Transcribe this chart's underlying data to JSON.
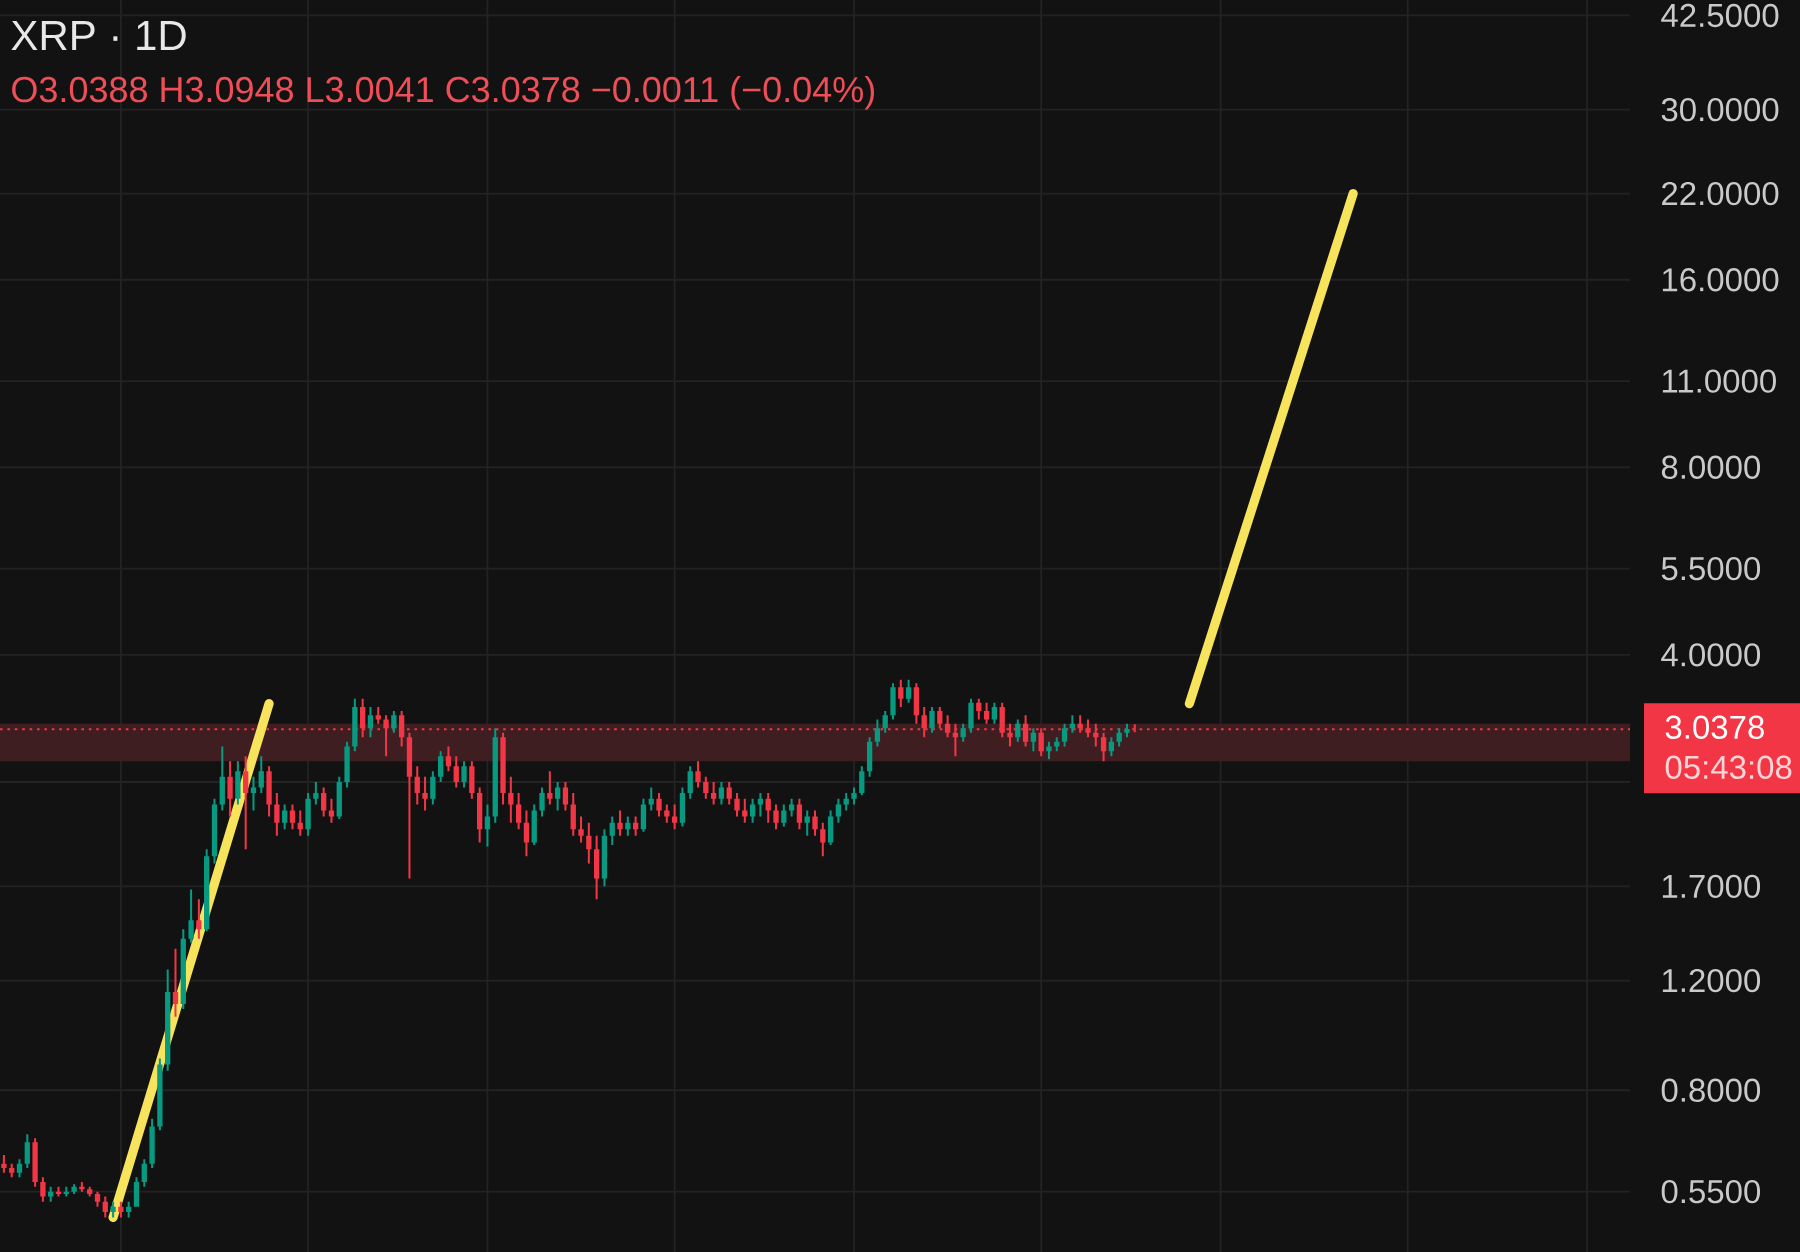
{
  "chart_data": {
    "type": "candlestick",
    "title": "XRP · 1D",
    "subtitle": "O3.0388 H3.0948 L3.0041 C3.0378 −0.0011 (−0.04%)",
    "annotations": [
      "05:43:08"
    ],
    "categories": [
      null,
      null,
      null,
      null,
      null,
      null,
      null,
      null,
      null,
      null,
      null,
      null,
      null,
      null,
      null,
      null,
      null,
      null,
      null,
      null,
      null,
      null,
      null,
      null,
      null,
      null,
      null,
      null,
      null,
      null,
      null,
      null,
      null,
      null,
      null,
      null,
      null,
      null,
      null,
      null,
      null,
      null,
      null,
      null,
      null,
      null,
      null,
      null,
      null,
      null,
      null,
      null,
      null,
      null,
      null,
      null,
      null,
      null,
      null,
      null,
      null,
      null,
      null,
      null,
      null,
      null,
      null,
      null,
      null,
      null,
      null,
      null,
      null,
      null,
      null,
      null,
      null,
      null,
      null,
      null,
      null,
      null,
      null,
      null,
      null,
      null,
      null,
      null,
      null,
      null,
      null,
      null,
      null,
      null,
      null,
      null,
      null,
      null,
      null,
      null,
      null,
      null,
      null,
      null,
      null,
      null,
      null,
      null,
      null,
      null,
      null,
      null,
      null,
      null,
      null,
      null,
      null,
      null,
      null,
      null,
      null,
      null,
      null,
      null,
      null,
      null,
      null,
      null,
      null,
      null,
      null,
      null,
      null,
      null,
      null,
      null,
      null,
      null,
      null,
      null,
      null,
      null,
      null,
      null,
      null,
      null,
      null,
      null,
      null,
      null,
      null,
      null,
      null,
      null,
      null,
      null,
      null,
      null,
      null,
      null,
      null,
      null,
      null,
      null,
      null,
      null,
      null,
      null,
      null,
      null,
      null,
      null,
      null,
      null,
      null,
      null,
      null,
      null,
      null,
      null,
      null,
      null,
      null,
      null,
      null,
      null,
      null,
      null,
      null,
      null,
      null,
      null,
      null,
      null,
      null,
      null,
      null,
      null,
      null,
      null,
      null,
      null,
      null,
      null,
      null,
      null,
      null,
      null,
      null
    ],
    "ohlc": [
      [
        0.61,
        0.63,
        0.59,
        0.6
      ],
      [
        0.6,
        0.61,
        0.58,
        0.59
      ],
      [
        0.59,
        0.62,
        0.58,
        0.61
      ],
      [
        0.61,
        0.68,
        0.6,
        0.66
      ],
      [
        0.66,
        0.67,
        0.56,
        0.57
      ],
      [
        0.57,
        0.58,
        0.53,
        0.54
      ],
      [
        0.54,
        0.56,
        0.53,
        0.55
      ],
      [
        0.55,
        0.56,
        0.54,
        0.545
      ],
      [
        0.545,
        0.56,
        0.54,
        0.55
      ],
      [
        0.55,
        0.565,
        0.545,
        0.56
      ],
      [
        0.56,
        0.57,
        0.55,
        0.555
      ],
      [
        0.555,
        0.56,
        0.54,
        0.545
      ],
      [
        0.545,
        0.55,
        0.52,
        0.53
      ],
      [
        0.53,
        0.54,
        0.5,
        0.51
      ],
      [
        0.51,
        0.53,
        0.5,
        0.52
      ],
      [
        0.52,
        0.53,
        0.5,
        0.51
      ],
      [
        0.51,
        0.53,
        0.5,
        0.52
      ],
      [
        0.52,
        0.58,
        0.52,
        0.57
      ],
      [
        0.57,
        0.62,
        0.56,
        0.61
      ],
      [
        0.61,
        0.72,
        0.6,
        0.7
      ],
      [
        0.7,
        0.9,
        0.69,
        0.88
      ],
      [
        0.88,
        1.25,
        0.86,
        1.15
      ],
      [
        1.15,
        1.35,
        1.05,
        1.1
      ],
      [
        1.1,
        1.45,
        1.08,
        1.4
      ],
      [
        1.4,
        1.68,
        1.38,
        1.5
      ],
      [
        1.5,
        1.62,
        1.4,
        1.45
      ],
      [
        1.45,
        1.95,
        1.44,
        1.9
      ],
      [
        1.9,
        2.35,
        1.85,
        2.3
      ],
      [
        2.3,
        2.85,
        2.25,
        2.55
      ],
      [
        2.55,
        2.7,
        2.2,
        2.35
      ],
      [
        2.35,
        2.7,
        2.3,
        2.6
      ],
      [
        2.6,
        2.75,
        1.95,
        2.4
      ],
      [
        2.4,
        2.55,
        2.25,
        2.45
      ],
      [
        2.45,
        2.75,
        2.4,
        2.6
      ],
      [
        2.6,
        2.65,
        2.2,
        2.3
      ],
      [
        2.3,
        2.4,
        2.05,
        2.15
      ],
      [
        2.15,
        2.3,
        2.1,
        2.25
      ],
      [
        2.25,
        2.3,
        2.1,
        2.15
      ],
      [
        2.15,
        2.25,
        2.05,
        2.1
      ],
      [
        2.1,
        2.4,
        2.05,
        2.35
      ],
      [
        2.35,
        2.5,
        2.3,
        2.4
      ],
      [
        2.4,
        2.45,
        2.2,
        2.25
      ],
      [
        2.25,
        2.35,
        2.15,
        2.2
      ],
      [
        2.2,
        2.55,
        2.18,
        2.5
      ],
      [
        2.5,
        2.9,
        2.45,
        2.85
      ],
      [
        2.85,
        3.4,
        2.8,
        3.3
      ],
      [
        3.3,
        3.4,
        2.95,
        3.05
      ],
      [
        3.05,
        3.3,
        2.95,
        3.2
      ],
      [
        3.2,
        3.3,
        3.1,
        3.15
      ],
      [
        3.15,
        3.2,
        2.75,
        3.05
      ],
      [
        3.05,
        3.25,
        3.0,
        3.2
      ],
      [
        3.2,
        3.25,
        2.85,
        2.95
      ],
      [
        2.95,
        3.0,
        1.75,
        2.55
      ],
      [
        2.55,
        2.65,
        2.3,
        2.4
      ],
      [
        2.4,
        2.55,
        2.25,
        2.35
      ],
      [
        2.35,
        2.6,
        2.3,
        2.55
      ],
      [
        2.55,
        2.8,
        2.5,
        2.75
      ],
      [
        2.75,
        2.85,
        2.6,
        2.65
      ],
      [
        2.65,
        2.75,
        2.45,
        2.5
      ],
      [
        2.5,
        2.7,
        2.45,
        2.65
      ],
      [
        2.65,
        2.7,
        2.35,
        2.4
      ],
      [
        2.4,
        2.45,
        2.0,
        2.1
      ],
      [
        2.1,
        2.3,
        1.97,
        2.2
      ],
      [
        2.2,
        3.05,
        2.15,
        2.95
      ],
      [
        2.95,
        3.0,
        2.3,
        2.4
      ],
      [
        2.4,
        2.55,
        2.15,
        2.3
      ],
      [
        2.3,
        2.4,
        2.1,
        2.15
      ],
      [
        2.15,
        2.25,
        1.9,
        2.0
      ],
      [
        2.0,
        2.3,
        1.98,
        2.25
      ],
      [
        2.25,
        2.45,
        2.2,
        2.4
      ],
      [
        2.4,
        2.6,
        2.3,
        2.35
      ],
      [
        2.35,
        2.5,
        2.25,
        2.45
      ],
      [
        2.45,
        2.5,
        2.25,
        2.3
      ],
      [
        2.3,
        2.4,
        2.05,
        2.1
      ],
      [
        2.1,
        2.2,
        2.0,
        2.05
      ],
      [
        2.05,
        2.15,
        1.85,
        1.95
      ],
      [
        1.95,
        2.05,
        1.62,
        1.75
      ],
      [
        1.75,
        2.1,
        1.7,
        2.05
      ],
      [
        2.05,
        2.2,
        1.98,
        2.15
      ],
      [
        2.15,
        2.25,
        2.05,
        2.1
      ],
      [
        2.1,
        2.2,
        2.05,
        2.15
      ],
      [
        2.15,
        2.2,
        2.05,
        2.1
      ],
      [
        2.1,
        2.35,
        2.08,
        2.3
      ],
      [
        2.3,
        2.45,
        2.25,
        2.35
      ],
      [
        2.35,
        2.4,
        2.2,
        2.25
      ],
      [
        2.25,
        2.3,
        2.15,
        2.2
      ],
      [
        2.2,
        2.3,
        2.1,
        2.15
      ],
      [
        2.15,
        2.45,
        2.12,
        2.4
      ],
      [
        2.4,
        2.65,
        2.35,
        2.6
      ],
      [
        2.6,
        2.7,
        2.45,
        2.5
      ],
      [
        2.5,
        2.55,
        2.35,
        2.4
      ],
      [
        2.4,
        2.5,
        2.3,
        2.35
      ],
      [
        2.35,
        2.5,
        2.3,
        2.45
      ],
      [
        2.45,
        2.5,
        2.3,
        2.35
      ],
      [
        2.35,
        2.4,
        2.2,
        2.25
      ],
      [
        2.25,
        2.35,
        2.15,
        2.2
      ],
      [
        2.2,
        2.35,
        2.15,
        2.3
      ],
      [
        2.3,
        2.4,
        2.2,
        2.35
      ],
      [
        2.35,
        2.4,
        2.15,
        2.25
      ],
      [
        2.25,
        2.3,
        2.1,
        2.15
      ],
      [
        2.15,
        2.3,
        2.12,
        2.25
      ],
      [
        2.25,
        2.35,
        2.2,
        2.3
      ],
      [
        2.3,
        2.35,
        2.1,
        2.15
      ],
      [
        2.15,
        2.25,
        2.05,
        2.2
      ],
      [
        2.2,
        2.25,
        2.05,
        2.1
      ],
      [
        2.1,
        2.15,
        1.9,
        2.0
      ],
      [
        2.0,
        2.25,
        1.98,
        2.2
      ],
      [
        2.2,
        2.35,
        2.15,
        2.3
      ],
      [
        2.3,
        2.4,
        2.25,
        2.35
      ],
      [
        2.35,
        2.45,
        2.3,
        2.4
      ],
      [
        2.4,
        2.65,
        2.38,
        2.6
      ],
      [
        2.6,
        2.95,
        2.55,
        2.9
      ],
      [
        2.9,
        3.15,
        2.85,
        3.05
      ],
      [
        3.05,
        3.25,
        3.0,
        3.2
      ],
      [
        3.2,
        3.6,
        3.15,
        3.55
      ],
      [
        3.55,
        3.65,
        3.3,
        3.4
      ],
      [
        3.4,
        3.65,
        3.35,
        3.55
      ],
      [
        3.55,
        3.6,
        3.1,
        3.2
      ],
      [
        3.2,
        3.3,
        2.95,
        3.05
      ],
      [
        3.05,
        3.3,
        3.0,
        3.25
      ],
      [
        3.25,
        3.3,
        3.05,
        3.1
      ],
      [
        3.1,
        3.2,
        2.95,
        3.0
      ],
      [
        3.0,
        3.1,
        2.75,
        2.95
      ],
      [
        2.95,
        3.1,
        2.9,
        3.05
      ],
      [
        3.05,
        3.4,
        3.0,
        3.35
      ],
      [
        3.35,
        3.4,
        3.15,
        3.25
      ],
      [
        3.25,
        3.35,
        3.1,
        3.15
      ],
      [
        3.15,
        3.35,
        3.1,
        3.3
      ],
      [
        3.3,
        3.35,
        2.95,
        3.0
      ],
      [
        3.0,
        3.1,
        2.85,
        2.95
      ],
      [
        2.95,
        3.15,
        2.9,
        3.1
      ],
      [
        3.1,
        3.2,
        2.85,
        2.9
      ],
      [
        2.9,
        3.05,
        2.8,
        3.0
      ],
      [
        3.0,
        3.05,
        2.75,
        2.8
      ],
      [
        2.8,
        2.9,
        2.72,
        2.85
      ],
      [
        2.85,
        2.95,
        2.8,
        2.9
      ],
      [
        2.9,
        3.1,
        2.85,
        3.05
      ],
      [
        3.05,
        3.2,
        3.0,
        3.1
      ],
      [
        3.1,
        3.2,
        3.0,
        3.05
      ],
      [
        3.05,
        3.15,
        2.95,
        3.0
      ],
      [
        3.0,
        3.1,
        2.85,
        2.95
      ],
      [
        2.95,
        3.0,
        2.7,
        2.8
      ],
      [
        2.8,
        2.95,
        2.75,
        2.9
      ],
      [
        2.9,
        3.05,
        2.85,
        3.0
      ],
      [
        3.0,
        3.1,
        2.95,
        3.04
      ],
      [
        3.0388,
        3.0948,
        3.0041,
        3.0378
      ],
      null,
      null,
      null,
      null,
      null,
      null,
      null,
      null,
      null,
      null,
      null,
      null,
      null,
      null,
      null,
      null,
      null,
      null,
      null,
      null,
      null,
      null,
      null,
      null,
      null,
      null,
      null,
      null,
      null,
      null,
      null,
      null,
      null,
      null,
      null,
      null,
      null,
      null,
      null,
      null,
      null,
      null,
      null,
      null,
      null,
      null,
      null,
      null,
      null,
      null,
      null,
      null,
      null,
      null,
      null,
      null,
      null,
      null,
      null,
      null,
      null,
      null,
      null
    ],
    "series": [
      {
        "type": "line",
        "color": "#f7e35c",
        "values": [
          null,
          null,
          null,
          null,
          null,
          null,
          null,
          null,
          null,
          null,
          null,
          null,
          null,
          null,
          0.5,
          null,
          null,
          null,
          null,
          null,
          null,
          null,
          null,
          null,
          null,
          null,
          null,
          null,
          null,
          null,
          null,
          null,
          null,
          null,
          3.34,
          null,
          null,
          null,
          null,
          null,
          null,
          null,
          null,
          null,
          null,
          null,
          null,
          null,
          null,
          null,
          null,
          null,
          null,
          null,
          null,
          null,
          null,
          null,
          null,
          null,
          null,
          null,
          null,
          null,
          null,
          null,
          null,
          null,
          null,
          null,
          null,
          null,
          null,
          null,
          null,
          null,
          null,
          null,
          null,
          null,
          null,
          null,
          null,
          null,
          null,
          null,
          null,
          null,
          null,
          null,
          null,
          null,
          null,
          null,
          null,
          null,
          null,
          null,
          null,
          null,
          null,
          null,
          null,
          null,
          null,
          null,
          null,
          null,
          null,
          null,
          null,
          null,
          null,
          null,
          null,
          null,
          null,
          null,
          null,
          null,
          null,
          null,
          null,
          null,
          null,
          null,
          null,
          null,
          null,
          null,
          null,
          null,
          null,
          null,
          null,
          null,
          null,
          null,
          null,
          null,
          null,
          null,
          null,
          null,
          null,
          null,
          null,
          null,
          null,
          null,
          null,
          null,
          null,
          null,
          null,
          null,
          null,
          null,
          null,
          null,
          null,
          null,
          null,
          null,
          null,
          null,
          null,
          null,
          null,
          null,
          null,
          null,
          null,
          null,
          null,
          null,
          null,
          null,
          null,
          null,
          null,
          null,
          null,
          null,
          null,
          null,
          null,
          null,
          null,
          null,
          null,
          null,
          null,
          null,
          null,
          null,
          null,
          null,
          null,
          null,
          null,
          null,
          null,
          null,
          null,
          null,
          null,
          null,
          null
        ]
      },
      {
        "type": "line",
        "color": "#f7e35c",
        "values": [
          null,
          null,
          null,
          null,
          null,
          null,
          null,
          null,
          null,
          null,
          null,
          null,
          null,
          null,
          null,
          null,
          null,
          null,
          null,
          null,
          null,
          null,
          null,
          null,
          null,
          null,
          null,
          null,
          null,
          null,
          null,
          null,
          null,
          null,
          null,
          null,
          null,
          null,
          null,
          null,
          null,
          null,
          null,
          null,
          null,
          null,
          null,
          null,
          null,
          null,
          null,
          null,
          null,
          null,
          null,
          null,
          null,
          null,
          null,
          null,
          null,
          null,
          null,
          null,
          null,
          null,
          null,
          null,
          null,
          null,
          null,
          null,
          null,
          null,
          null,
          null,
          null,
          null,
          null,
          null,
          null,
          null,
          null,
          null,
          null,
          null,
          null,
          null,
          null,
          null,
          null,
          null,
          null,
          null,
          null,
          null,
          null,
          null,
          null,
          null,
          null,
          null,
          null,
          null,
          null,
          null,
          null,
          null,
          null,
          null,
          null,
          null,
          null,
          null,
          null,
          null,
          null,
          null,
          null,
          null,
          null,
          null,
          null,
          null,
          null,
          null,
          null,
          null,
          null,
          null,
          null,
          null,
          null,
          null,
          null,
          null,
          null,
          null,
          null,
          null,
          null,
          null,
          null,
          null,
          null,
          null,
          null,
          null,
          null,
          null,
          null,
          null,
          3.34,
          null,
          null,
          null,
          null,
          null,
          null,
          null,
          null,
          null,
          null,
          null,
          null,
          null,
          null,
          null,
          null,
          null,
          null,
          null,
          null,
          22,
          null,
          null,
          null,
          null,
          null,
          null,
          null,
          null,
          null,
          null,
          null,
          null,
          null,
          null,
          null,
          null,
          null,
          null,
          null,
          null,
          null,
          null,
          null,
          null,
          null,
          null,
          null,
          null,
          null,
          null,
          null,
          null,
          null,
          null,
          null
        ]
      }
    ],
    "ylim": [
      0.44,
      45
    ],
    "yticks": [
      {
        "value": 0.55,
        "label": "0.5500"
      },
      {
        "value": 0.8,
        "label": "0.8000"
      },
      {
        "value": 1.2,
        "label": "1.2000"
      },
      {
        "value": 1.7,
        "label": "1.7000"
      },
      {
        "value": 2.5,
        "label": null
      },
      {
        "value": 4,
        "label": "4.0000"
      },
      {
        "value": 5.5,
        "label": "5.5000"
      },
      {
        "value": 8,
        "label": "8.0000"
      },
      {
        "value": 11,
        "label": "11.0000"
      },
      {
        "value": 16,
        "label": "16.0000"
      },
      {
        "value": 22,
        "label": "22.0000"
      },
      {
        "value": 30,
        "label": "30.0000"
      },
      {
        "value": 42.5,
        "label": "42.5000"
      }
    ],
    "log": true,
    "grid": true,
    "tick_labels": "y",
    "ref_lines": [
      {
        "axis": "y",
        "value": 3.0378,
        "label": "3.0378",
        "color": "#f23645",
        "line_style": "dotted"
      }
    ],
    "bands": [
      {
        "axis": "y",
        "from": 2.7,
        "to": 3.1,
        "color": "#3e1e21"
      }
    ]
  }
}
